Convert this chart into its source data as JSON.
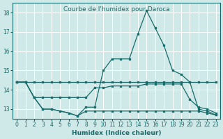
{
  "title": "Courbe de l'humidex pour Daroca",
  "xlabel": "Humidex (Indice chaleur)",
  "background_color": "#cfe8e8",
  "grid_color": "#ffffff",
  "line_color": "#1a6b6b",
  "x_values": [
    0,
    1,
    2,
    3,
    4,
    5,
    6,
    7,
    8,
    9,
    10,
    11,
    12,
    13,
    14,
    15,
    16,
    17,
    18,
    19,
    20,
    21,
    22,
    23
  ],
  "series_top": [
    14.4,
    14.4,
    13.6,
    13.0,
    13.0,
    12.9,
    12.8,
    12.65,
    13.1,
    13.1,
    15.0,
    15.6,
    15.6,
    15.6,
    16.9,
    18.1,
    17.2,
    16.3,
    15.0,
    14.8,
    14.4,
    13.0,
    12.9,
    12.7
  ],
  "series_mid": [
    14.4,
    14.4,
    13.6,
    13.6,
    13.6,
    13.6,
    13.6,
    13.6,
    13.6,
    14.1,
    14.1,
    14.2,
    14.2,
    14.2,
    14.2,
    14.3,
    14.3,
    14.3,
    14.3,
    14.3,
    13.5,
    13.1,
    13.0,
    12.8
  ],
  "series_bot": [
    14.4,
    14.4,
    13.6,
    13.0,
    13.0,
    12.9,
    12.8,
    12.65,
    12.9,
    12.9,
    12.9,
    12.9,
    12.9,
    12.9,
    12.9,
    12.9,
    12.9,
    12.9,
    12.9,
    12.9,
    12.9,
    12.9,
    12.8,
    12.7
  ],
  "series_flat": [
    14.4,
    14.4,
    14.4,
    14.4,
    14.4,
    14.4,
    14.4,
    14.4,
    14.4,
    14.4,
    14.4,
    14.4,
    14.4,
    14.4,
    14.4,
    14.4,
    14.4,
    14.4,
    14.4,
    14.4,
    14.4,
    14.4,
    14.4,
    14.4
  ],
  "ylim": [
    12.5,
    18.5
  ],
  "xlim": [
    -0.5,
    23.5
  ],
  "yticks": [
    13,
    14,
    15,
    16,
    17,
    18
  ],
  "xticks": [
    0,
    1,
    2,
    3,
    4,
    5,
    6,
    7,
    8,
    9,
    10,
    11,
    12,
    13,
    14,
    15,
    16,
    17,
    18,
    19,
    20,
    21,
    22,
    23
  ],
  "title_fontsize": 6.5,
  "label_fontsize": 6.5,
  "tick_fontsize": 5.5
}
